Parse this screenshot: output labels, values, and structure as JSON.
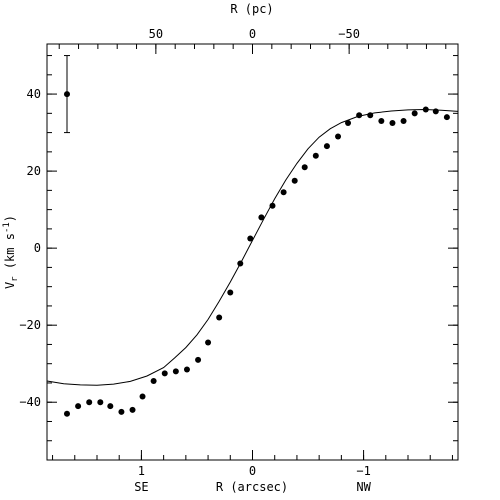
{
  "chart_data": {
    "type": "scatter",
    "xlabel": "R (arcsec)",
    "ylabel": "V",
    "ylabel_sub": "r",
    "ylabel_units": " (km s",
    "ylabel_sup": "-1",
    "ylabel_close": ")",
    "top_xlabel": "R (pc)",
    "xlim": [
      1.85,
      -1.85
    ],
    "ylim": [
      -55,
      53
    ],
    "bottom_ticks": [
      {
        "value": 1,
        "label": "1"
      },
      {
        "value": 0,
        "label": "0"
      },
      {
        "value": -1,
        "label": "−1"
      }
    ],
    "bottom_minor_step": 0.2,
    "top_ticks": [
      {
        "value": 0.87,
        "label": "50"
      },
      {
        "value": 0.0,
        "label": "0"
      },
      {
        "value": -0.87,
        "label": "−50"
      }
    ],
    "top_minor_step": 0.174,
    "y_ticks": [
      {
        "value": 40,
        "label": "40"
      },
      {
        "value": 20,
        "label": "20"
      },
      {
        "value": 0,
        "label": "0"
      },
      {
        "value": -20,
        "label": "−20"
      },
      {
        "value": -40,
        "label": "−40"
      }
    ],
    "y_minor_step": 5,
    "side_labels": {
      "left": "SE",
      "right": "NW"
    },
    "side_label_positions": [
      1.0,
      -1.0
    ],
    "error_bar": {
      "x": 1.67,
      "y": 40,
      "yerr": 10
    },
    "series": [
      {
        "kind": "points",
        "x": [
          1.67,
          1.57,
          1.47,
          1.37,
          1.28,
          1.18,
          1.08,
          0.99,
          0.89,
          0.79,
          0.69,
          0.59,
          0.49,
          0.4,
          0.3,
          0.2,
          0.11,
          0.02,
          -0.08,
          -0.18,
          -0.28,
          -0.38,
          -0.47,
          -0.57,
          -0.67,
          -0.77,
          -0.86,
          -0.96,
          -1.06,
          -1.16,
          -1.26,
          -1.36,
          -1.46,
          -1.56,
          -1.65,
          -1.75
        ],
        "y": [
          -43.0,
          -41.0,
          -40.0,
          -40.0,
          -41.0,
          -42.5,
          -42.0,
          -38.5,
          -34.5,
          -32.5,
          -32.0,
          -31.5,
          -29.0,
          -24.5,
          -18.0,
          -11.5,
          -4.0,
          2.5,
          8.0,
          11.0,
          14.5,
          17.5,
          21.0,
          24.0,
          26.5,
          29.0,
          32.5,
          34.5,
          34.5,
          33.0,
          32.5,
          33.0,
          35.0,
          36.0,
          35.5,
          34.0
        ]
      },
      {
        "kind": "curve",
        "x": [
          1.85,
          1.7,
          1.55,
          1.4,
          1.25,
          1.1,
          0.95,
          0.8,
          0.7,
          0.6,
          0.5,
          0.4,
          0.3,
          0.2,
          0.1,
          0.0,
          -0.1,
          -0.2,
          -0.3,
          -0.4,
          -0.5,
          -0.6,
          -0.7,
          -0.8,
          -0.95,
          -1.1,
          -1.25,
          -1.4,
          -1.55,
          -1.7,
          -1.85
        ],
        "y": [
          -34.5,
          -35.2,
          -35.5,
          -35.6,
          -35.3,
          -34.6,
          -33.2,
          -31.0,
          -28.5,
          -25.8,
          -22.5,
          -18.5,
          -13.8,
          -8.8,
          -3.5,
          2.0,
          7.5,
          12.8,
          17.7,
          22.0,
          25.8,
          28.8,
          31.0,
          32.6,
          34.2,
          35.1,
          35.6,
          35.9,
          36.0,
          35.8,
          35.5
        ]
      }
    ]
  }
}
